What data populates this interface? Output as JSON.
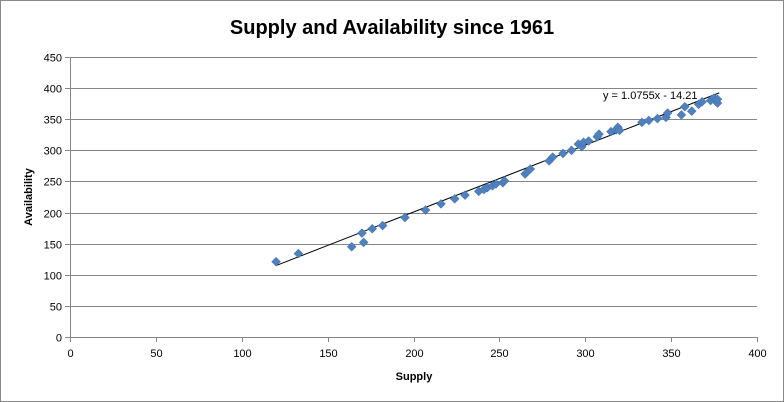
{
  "chart_data": {
    "type": "scatter",
    "title": "Supply and Availability since 1961",
    "xlabel": "Supply",
    "ylabel": "Availability",
    "xlim": [
      0,
      400
    ],
    "ylim": [
      0,
      450
    ],
    "xticks": [
      0,
      50,
      100,
      150,
      200,
      250,
      300,
      350,
      400
    ],
    "yticks": [
      0,
      50,
      100,
      150,
      200,
      250,
      300,
      350,
      400,
      450
    ],
    "grid": "horizontal",
    "legend": "none",
    "marker_color": "#4F81BD",
    "trendline": {
      "type": "linear",
      "slope": 1.0755,
      "intercept": -14.21,
      "equation_label": "y = 1.0755x - 14.21",
      "x_range": [
        120,
        378
      ]
    },
    "points": [
      {
        "x": 120,
        "y": 121
      },
      {
        "x": 133,
        "y": 134
      },
      {
        "x": 164,
        "y": 145
      },
      {
        "x": 170,
        "y": 167
      },
      {
        "x": 171,
        "y": 152
      },
      {
        "x": 176,
        "y": 174
      },
      {
        "x": 182,
        "y": 179
      },
      {
        "x": 195,
        "y": 192
      },
      {
        "x": 207,
        "y": 204
      },
      {
        "x": 216,
        "y": 214
      },
      {
        "x": 224,
        "y": 222
      },
      {
        "x": 230,
        "y": 228
      },
      {
        "x": 238,
        "y": 234
      },
      {
        "x": 241,
        "y": 237
      },
      {
        "x": 243,
        "y": 240
      },
      {
        "x": 246,
        "y": 243
      },
      {
        "x": 248,
        "y": 246
      },
      {
        "x": 252,
        "y": 248
      },
      {
        "x": 253,
        "y": 251
      },
      {
        "x": 265,
        "y": 262
      },
      {
        "x": 266,
        "y": 265
      },
      {
        "x": 268,
        "y": 270
      },
      {
        "x": 279,
        "y": 283
      },
      {
        "x": 281,
        "y": 289
      },
      {
        "x": 287,
        "y": 295
      },
      {
        "x": 292,
        "y": 300
      },
      {
        "x": 296,
        "y": 310
      },
      {
        "x": 298,
        "y": 306
      },
      {
        "x": 299,
        "y": 313
      },
      {
        "x": 302,
        "y": 315
      },
      {
        "x": 307,
        "y": 322
      },
      {
        "x": 308,
        "y": 326
      },
      {
        "x": 315,
        "y": 330
      },
      {
        "x": 318,
        "y": 333
      },
      {
        "x": 319,
        "y": 337
      },
      {
        "x": 320,
        "y": 332
      },
      {
        "x": 333,
        "y": 345
      },
      {
        "x": 337,
        "y": 348
      },
      {
        "x": 342,
        "y": 351
      },
      {
        "x": 347,
        "y": 353
      },
      {
        "x": 348,
        "y": 360
      },
      {
        "x": 356,
        "y": 357
      },
      {
        "x": 358,
        "y": 370
      },
      {
        "x": 362,
        "y": 363
      },
      {
        "x": 366,
        "y": 374
      },
      {
        "x": 368,
        "y": 378
      },
      {
        "x": 373,
        "y": 380
      },
      {
        "x": 375,
        "y": 384
      },
      {
        "x": 377,
        "y": 376
      },
      {
        "x": 377,
        "y": 382
      }
    ]
  }
}
